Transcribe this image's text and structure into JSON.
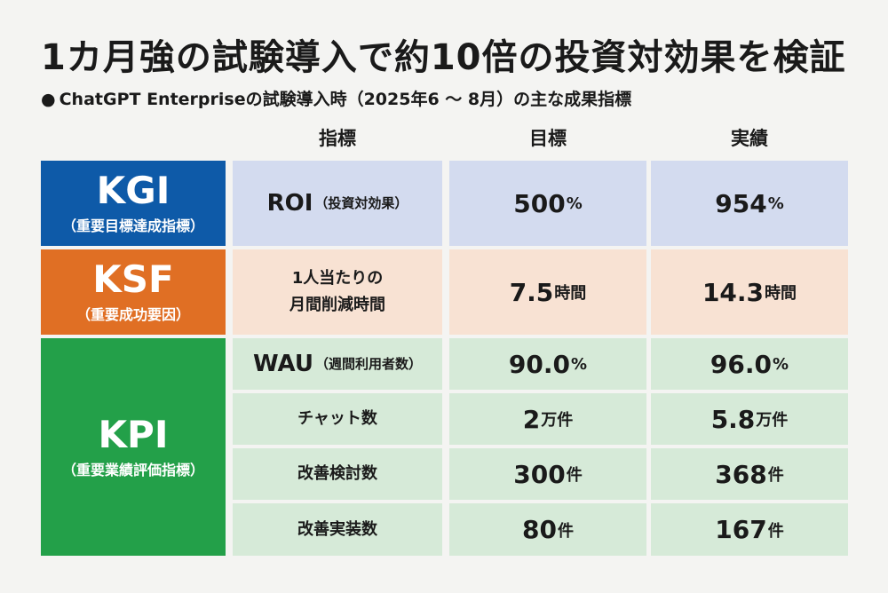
{
  "title": "1カ月強の試験導入で約10倍の投資対効果を検証",
  "subtitle": {
    "bullet": "●",
    "text": "ChatGPT Enterpriseの試験導入時（2025年6 ～ 8月）の主な成果指標"
  },
  "headers": {
    "indicator": "指標",
    "target": "目標",
    "actual": "実績"
  },
  "colors": {
    "kgi": "#0e5aa8",
    "ksf": "#e06f24",
    "kpi": "#23a049",
    "kgi_light": "#d3dbef",
    "ksf_light": "#f8e2d3",
    "kpi_light": "#d6ead8"
  },
  "categories": {
    "kgi": {
      "name": "KGI",
      "desc": "（重要目標達成指標）"
    },
    "ksf": {
      "name": "KSF",
      "desc": "（重要成功要因）"
    },
    "kpi": {
      "name": "KPI",
      "desc": "（重要業績評価指標）"
    }
  },
  "rows": {
    "roi": {
      "ind_main": "ROI",
      "ind_paren": "（投資対効果）",
      "target_num": "500",
      "target_unit": "%",
      "actual_num": "954",
      "actual_unit": "%"
    },
    "time": {
      "ind_line1": "1人当たりの",
      "ind_line2": "月間削減時間",
      "target_num": "7.5",
      "target_unit": "時間",
      "actual_num": "14.3",
      "actual_unit": "時間"
    },
    "wau": {
      "ind_main": "WAU",
      "ind_paren": "（週間利用者数）",
      "target_num": "90.0",
      "target_unit": "%",
      "actual_num": "96.0",
      "actual_unit": "%"
    },
    "chat": {
      "ind": "チャット数",
      "target_num": "2",
      "target_unit": "万件",
      "actual_num": "5.8",
      "actual_unit": "万件"
    },
    "review": {
      "ind": "改善検討数",
      "target_num": "300",
      "target_unit": "件",
      "actual_num": "368",
      "actual_unit": "件"
    },
    "impl": {
      "ind": "改善実装数",
      "target_num": "80",
      "target_unit": "件",
      "actual_num": "167",
      "actual_unit": "件"
    }
  }
}
